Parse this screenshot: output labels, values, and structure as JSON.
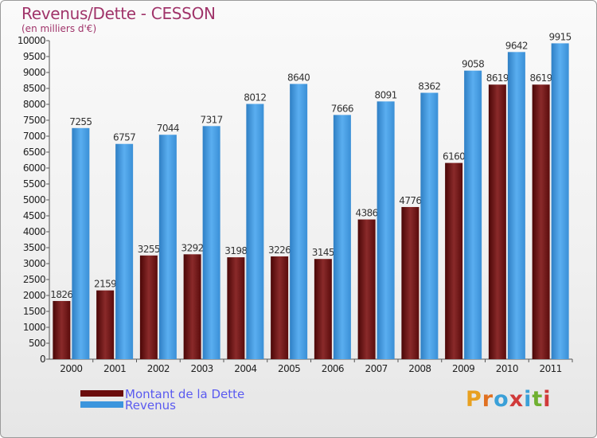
{
  "chart_data": {
    "type": "bar",
    "title": "Revenus/Dette - CESSON",
    "subtitle": "(en milliers d'€)",
    "categories": [
      "2000",
      "2001",
      "2002",
      "2003",
      "2004",
      "2005",
      "2006",
      "2007",
      "2008",
      "2009",
      "2010",
      "2011"
    ],
    "series": [
      {
        "name": "Montant de la Dette",
        "color": "#6b0d0d",
        "values": [
          1826,
          2159,
          3255,
          3292,
          3198,
          3226,
          3145,
          4386,
          4776,
          6160,
          8619,
          8619
        ]
      },
      {
        "name": "Revenus",
        "color": "#3b95dd",
        "values": [
          7255,
          6757,
          7044,
          7317,
          8012,
          8640,
          7666,
          8091,
          8362,
          9058,
          9642,
          9915
        ]
      }
    ],
    "ylim": [
      0,
      10000
    ],
    "ytick_step": 500,
    "grid": false,
    "legend_position": "bottom-left"
  },
  "logo": {
    "text": "Proxiti",
    "letter_colors": [
      "#e8a020",
      "#e07020",
      "#3aa0d8",
      "#d03a3a",
      "#3aa0d8",
      "#70b030",
      "#d03a3a"
    ]
  }
}
